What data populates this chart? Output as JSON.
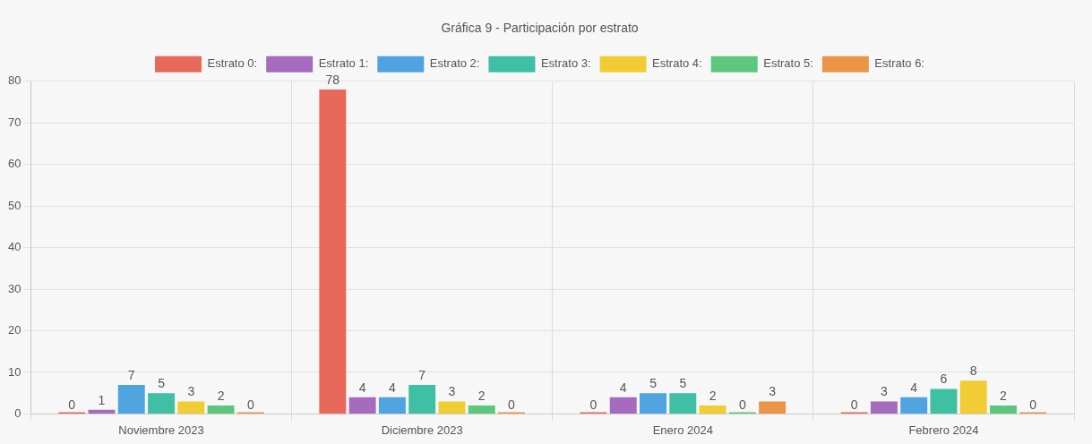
{
  "chart_data": {
    "type": "bar",
    "title": "Gráfica 9 - Participación por estrato",
    "categories": [
      "Noviembre 2023",
      "Diciembre 2023",
      "Enero 2024",
      "Febrero 2024"
    ],
    "series": [
      {
        "name": "Estrato 0:",
        "color": "#e8685a",
        "values": [
          0,
          78,
          0,
          0
        ]
      },
      {
        "name": "Estrato 1:",
        "color": "#a66bbe",
        "values": [
          1,
          4,
          4,
          3
        ]
      },
      {
        "name": "Estrato 2:",
        "color": "#4fa3df",
        "values": [
          7,
          4,
          5,
          4
        ]
      },
      {
        "name": "Estrato 3:",
        "color": "#3fbfa3",
        "values": [
          5,
          7,
          5,
          6
        ]
      },
      {
        "name": "Estrato 4:",
        "color": "#f2cc35",
        "values": [
          3,
          3,
          2,
          8
        ]
      },
      {
        "name": "Estrato 5:",
        "color": "#5cc77d",
        "values": [
          2,
          2,
          0,
          2
        ]
      },
      {
        "name": "Estrato 6:",
        "color": "#ea9447",
        "values": [
          0,
          0,
          3,
          0
        ]
      }
    ],
    "ylim": [
      0,
      80
    ],
    "yticks": [
      0,
      10,
      20,
      30,
      40,
      50,
      60,
      70,
      80
    ],
    "grid": true,
    "legend": "top",
    "data_labels": true
  }
}
